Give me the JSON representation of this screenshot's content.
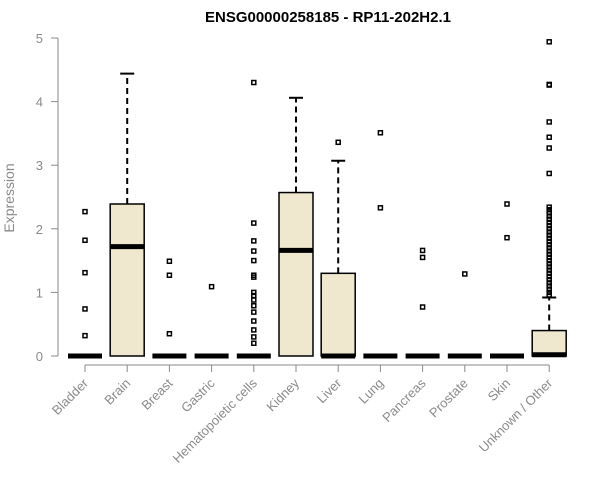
{
  "chart_data": {
    "type": "box",
    "title": "ENSG00000258185 - RP11-202H2.1",
    "xlabel": "",
    "ylabel": "Expression",
    "ylim": [
      0,
      5
    ],
    "yticks": [
      0,
      1,
      2,
      3,
      4,
      5
    ],
    "box_fill": "#efe8cf",
    "axis_color": "#8a8a8a",
    "categories": [
      "Bladder",
      "Brain",
      "Breast",
      "Gastric",
      "Hematopoietic cells",
      "Kidney",
      "Liver",
      "Lung",
      "Pancreas",
      "Prostate",
      "Skin",
      "Unknown / Other"
    ],
    "boxes": [
      {
        "category": "Bladder",
        "q1": 0,
        "median": 0,
        "q3": 0,
        "whisker_low": 0,
        "whisker_high": 0,
        "outliers": [
          2.27,
          1.82,
          1.31,
          0.74,
          0.32
        ]
      },
      {
        "category": "Brain",
        "q1": 0,
        "median": 1.72,
        "q3": 2.39,
        "whisker_low": 0,
        "whisker_high": 4.44,
        "outliers": []
      },
      {
        "category": "Breast",
        "q1": 0,
        "median": 0,
        "q3": 0,
        "whisker_low": 0,
        "whisker_high": 0,
        "outliers": [
          1.49,
          1.27,
          0.35
        ]
      },
      {
        "category": "Gastric",
        "q1": 0,
        "median": 0,
        "q3": 0,
        "whisker_low": 0,
        "whisker_high": 0,
        "outliers": [
          1.09
        ]
      },
      {
        "category": "Hematopoietic cells",
        "q1": 0,
        "median": 0,
        "q3": 0,
        "whisker_low": 0,
        "whisker_high": 0,
        "outliers": [
          4.3,
          2.09,
          1.81,
          1.65,
          1.5,
          1.27,
          1.24,
          1.0,
          0.95,
          0.88,
          0.79,
          0.69,
          0.55,
          0.41,
          0.3,
          0.2
        ]
      },
      {
        "category": "Kidney",
        "q1": 0,
        "median": 1.66,
        "q3": 2.57,
        "whisker_low": 0,
        "whisker_high": 4.06,
        "outliers": []
      },
      {
        "category": "Liver",
        "q1": 0,
        "median": 0,
        "q3": 1.3,
        "whisker_low": 0,
        "whisker_high": 3.07,
        "outliers": [
          3.36
        ]
      },
      {
        "category": "Lung",
        "q1": 0,
        "median": 0,
        "q3": 0,
        "whisker_low": 0,
        "whisker_high": 0,
        "outliers": [
          3.51,
          2.33
        ]
      },
      {
        "category": "Pancreas",
        "q1": 0,
        "median": 0,
        "q3": 0,
        "whisker_low": 0,
        "whisker_high": 0,
        "outliers": [
          1.66,
          1.55,
          0.77
        ]
      },
      {
        "category": "Prostate",
        "q1": 0,
        "median": 0,
        "q3": 0,
        "whisker_low": 0,
        "whisker_high": 0,
        "outliers": [
          1.29
        ]
      },
      {
        "category": "Skin",
        "q1": 0,
        "median": 0,
        "q3": 0,
        "whisker_low": 0,
        "whisker_high": 0,
        "outliers": [
          2.39,
          1.86
        ]
      },
      {
        "category": "Unknown / Other",
        "q1": 0,
        "median": 0.02,
        "q3": 0.4,
        "whisker_low": 0,
        "whisker_high": 0.92,
        "outliers": [
          4.94,
          4.27,
          4.26,
          3.68,
          3.44,
          3.27,
          2.87,
          2.34,
          2.3,
          2.25,
          2.2,
          2.15,
          2.1,
          2.05,
          2.0,
          1.95,
          1.9,
          1.85,
          1.8,
          1.75,
          1.7,
          1.65,
          1.6,
          1.55,
          1.5,
          1.45,
          1.4,
          1.35,
          1.3,
          1.25,
          1.2,
          1.15,
          1.1,
          1.05,
          1.0,
          0.96
        ]
      }
    ]
  }
}
